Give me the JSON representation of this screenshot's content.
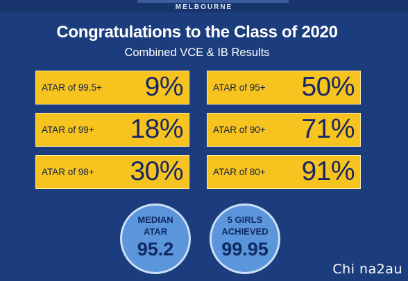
{
  "header": {
    "brand_text": "MELBOURNE",
    "title": "Congratulations to the Class of 2020",
    "subtitle": "Combined VCE & IB Results"
  },
  "stats": [
    {
      "label": "ATAR of 99.5+",
      "value": "9%"
    },
    {
      "label": "ATAR of 95+",
      "value": "50%"
    },
    {
      "label": "ATAR of 99+",
      "value": "18%"
    },
    {
      "label": "ATAR of 90+",
      "value": "71%"
    },
    {
      "label": "ATAR of 98+",
      "value": "30%"
    },
    {
      "label": "ATAR of 80+",
      "value": "91%"
    }
  ],
  "circles": [
    {
      "label_line1": "MEDIAN",
      "label_line2": "ATAR",
      "value": "95.2"
    },
    {
      "label_line1": "5 GIRLS",
      "label_line2": "ACHIEVED",
      "value": "99.95"
    }
  ],
  "watermark": "Chi na2au",
  "colors": {
    "background": "#1c3d7d",
    "stat_box": "#f7c31e",
    "stat_text": "#172766",
    "circle": "#5b95dc",
    "text_light": "#ffffff"
  }
}
